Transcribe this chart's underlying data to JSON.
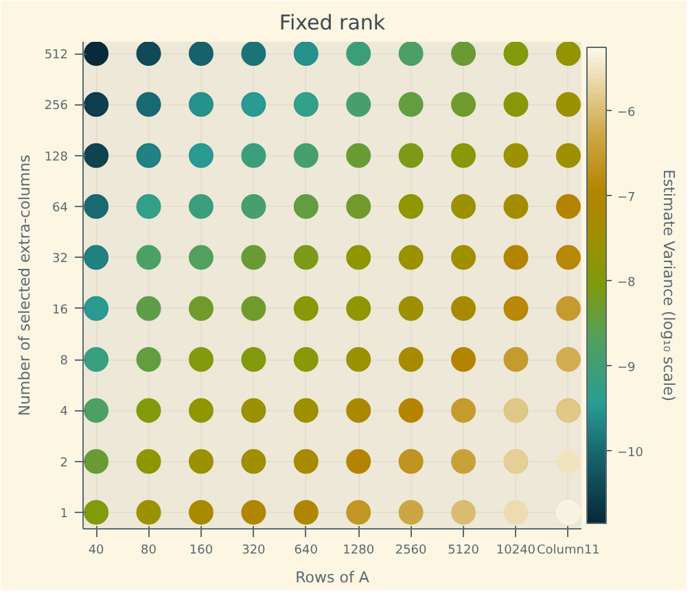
{
  "chart_data": {
    "type": "scatter",
    "title": "Fixed rank",
    "xlabel": "Rows of A",
    "ylabel": "Number of selected extra-columns",
    "clabel": "Estimate Variance (log₁₀ scale)",
    "categories": [
      "40",
      "80",
      "160",
      "320",
      "640",
      "1280",
      "2560",
      "5120",
      "10240",
      "Column11"
    ],
    "log": "y",
    "ylim": [
      0.8,
      600
    ],
    "yticks": [
      1,
      2,
      4,
      8,
      16,
      32,
      64,
      128,
      256,
      512
    ],
    "clim": [
      -10.85,
      -5.25
    ],
    "cticks": [
      -10,
      -9,
      -8,
      -7,
      -6
    ],
    "grid": true,
    "marker": "circle",
    "series": [
      {
        "values": [
          512,
          512,
          512,
          512,
          512,
          512,
          512,
          512,
          512,
          512
        ],
        "cvalues": [
          -10.8,
          -10.4,
          -10.1,
          -9.9,
          -9.6,
          -9.1,
          -8.8,
          -8.4,
          -8.0,
          -7.7
        ],
        "colors": [
          "#082a3a",
          "#114a56",
          "#16616a",
          "#1b7277",
          "#26928c",
          "#3b9e7b",
          "#4ca066",
          "#6a9a34",
          "#829a0c",
          "#949400"
        ]
      },
      {
        "values": [
          256,
          256,
          256,
          256,
          256,
          256,
          256,
          256,
          256,
          256
        ],
        "cvalues": [
          -10.6,
          -10.0,
          -9.6,
          -9.5,
          -9.3,
          -8.9,
          -8.5,
          -8.3,
          -7.9,
          -7.6
        ],
        "colors": [
          "#0e3f4e",
          "#186971",
          "#26928c",
          "#2a9a92",
          "#33a08a",
          "#469f6d",
          "#649c40",
          "#709a2c",
          "#889806",
          "#9a9200"
        ]
      },
      {
        "values": [
          128,
          128,
          128,
          128,
          128,
          128,
          128,
          128,
          128,
          128
        ],
        "cvalues": [
          -10.5,
          -9.8,
          -9.5,
          -9.1,
          -8.9,
          -8.4,
          -8.1,
          -7.9,
          -7.6,
          -7.5
        ],
        "colors": [
          "#0f434f",
          "#218284",
          "#2a9a92",
          "#3b9e7b",
          "#469f6d",
          "#6a9a34",
          "#7c9a18",
          "#889806",
          "#9a9200",
          "#9e9000"
        ]
      },
      {
        "values": [
          64,
          64,
          64,
          64,
          64,
          64,
          64,
          64,
          64,
          64
        ],
        "cvalues": [
          -10.0,
          -9.3,
          -9.1,
          -8.9,
          -8.5,
          -8.3,
          -7.8,
          -7.6,
          -7.4,
          -7.0
        ],
        "colors": [
          "#186971",
          "#33a08a",
          "#3b9e7b",
          "#469f6d",
          "#649c40",
          "#709a2c",
          "#8e9600",
          "#9a9200",
          "#a48c00",
          "#b48400"
        ]
      },
      {
        "values": [
          32,
          32,
          32,
          32,
          32,
          32,
          32,
          32,
          32,
          32
        ],
        "cvalues": [
          -9.8,
          -8.8,
          -8.7,
          -8.4,
          -8.1,
          -7.8,
          -7.6,
          -7.5,
          -7.0,
          -6.9
        ],
        "colors": [
          "#218284",
          "#4ca066",
          "#52a05d",
          "#6a9a34",
          "#7c9a18",
          "#8e9600",
          "#9a9200",
          "#9e9000",
          "#b48400",
          "#b88808"
        ]
      },
      {
        "values": [
          16,
          16,
          16,
          16,
          16,
          16,
          16,
          16,
          16,
          16
        ],
        "cvalues": [
          -9.5,
          -8.6,
          -8.3,
          -8.3,
          -7.9,
          -7.8,
          -7.5,
          -7.3,
          -6.9,
          -6.5
        ],
        "colors": [
          "#2a9a92",
          "#5e9c48",
          "#709a2c",
          "#709a2c",
          "#889806",
          "#8e9600",
          "#9e9000",
          "#a88a00",
          "#b88808",
          "#c59b2e"
        ]
      },
      {
        "values": [
          8,
          8,
          8,
          8,
          8,
          8,
          8,
          8,
          8,
          8
        ],
        "cvalues": [
          -9.2,
          -8.5,
          -8.0,
          -8.0,
          -7.9,
          -7.6,
          -7.3,
          -7.0,
          -6.5,
          -6.2
        ],
        "colors": [
          "#38a07e",
          "#649c40",
          "#829a0c",
          "#829a0c",
          "#889806",
          "#9a9200",
          "#a88a00",
          "#b48400",
          "#c59b2e",
          "#d1ac51"
        ]
      },
      {
        "values": [
          4,
          4,
          4,
          4,
          4,
          4,
          4,
          4,
          4,
          4
        ],
        "cvalues": [
          -8.8,
          -8.0,
          -7.8,
          -7.6,
          -7.5,
          -7.2,
          -7.0,
          -6.5,
          -5.9,
          -5.9
        ],
        "colors": [
          "#4ca066",
          "#829a0c",
          "#8e9600",
          "#9a9200",
          "#9e9000",
          "#ac8800",
          "#b48400",
          "#c59b2e",
          "#e0c888",
          "#e0c888"
        ]
      },
      {
        "values": [
          2,
          2,
          2,
          2,
          2,
          2,
          2,
          2,
          2,
          2
        ],
        "cvalues": [
          -8.4,
          -7.8,
          -7.6,
          -7.5,
          -7.3,
          -7.0,
          -6.7,
          -6.4,
          -5.8,
          -5.5
        ],
        "colors": [
          "#6a9a34",
          "#8e9600",
          "#9a9200",
          "#9e9000",
          "#a88a00",
          "#b48400",
          "#c09420",
          "#c9a139",
          "#e4d096",
          "#f0e4c0"
        ]
      },
      {
        "values": [
          1,
          1,
          1,
          1,
          1,
          1,
          1,
          1,
          1,
          1
        ],
        "cvalues": [
          -8.0,
          -7.6,
          -7.3,
          -7.1,
          -7.1,
          -6.6,
          -6.3,
          -6.0,
          -5.6,
          -5.3
        ],
        "colors": [
          "#829a0c",
          "#9a9200",
          "#a88a00",
          "#b08600",
          "#b08600",
          "#c19623",
          "#cca644",
          "#dabc70",
          "#ecdcb0",
          "#f8f2e0"
        ]
      }
    ]
  }
}
